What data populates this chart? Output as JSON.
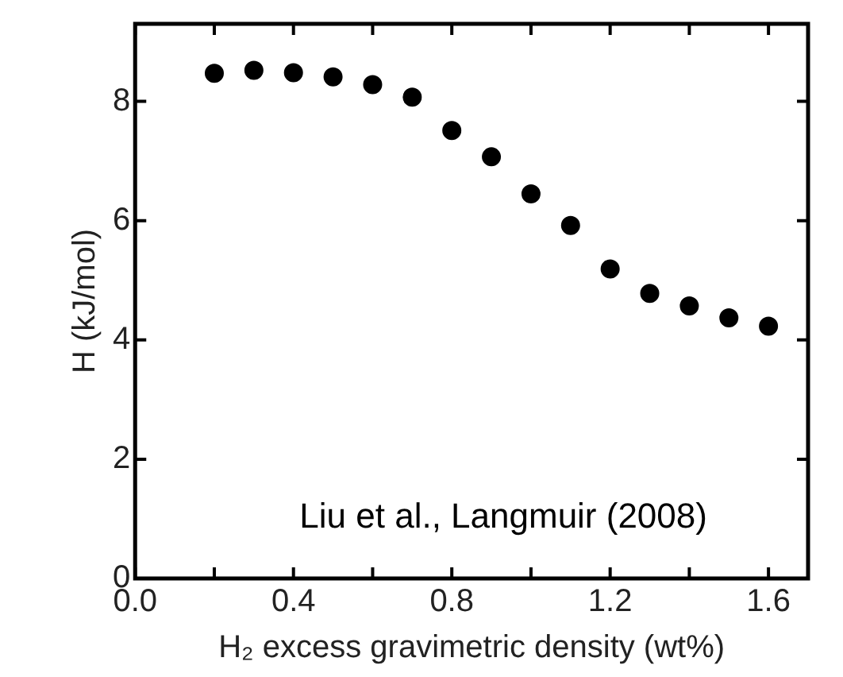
{
  "chart_data": {
    "type": "scatter",
    "xlabel": "H₂ excess gravimetric density (wt%)",
    "ylabel": "H (kJ/mol)",
    "annotations": [
      "Liu et al., Langmuir (2008)"
    ],
    "x": [
      0.2,
      0.3,
      0.4,
      0.5,
      0.6,
      0.7,
      0.8,
      0.9,
      1.0,
      1.1,
      1.2,
      1.3,
      1.4,
      1.5,
      1.6
    ],
    "series": [
      {
        "color": "#000000",
        "values": [
          8.47,
          8.52,
          8.48,
          8.41,
          8.28,
          8.07,
          7.51,
          7.07,
          6.45,
          5.92,
          5.19,
          4.78,
          4.57,
          4.37,
          4.23
        ]
      }
    ],
    "xlim": [
      0,
      1.7
    ],
    "ylim": [
      0,
      9.3
    ],
    "xticks": [
      {
        "value": 0,
        "label": "0.0"
      },
      {
        "value": 0.2,
        "label": null
      },
      0.4,
      {
        "value": 0.6,
        "label": null
      },
      0.8,
      {
        "value": 1.0,
        "label": null
      },
      1.2,
      {
        "value": 1.4,
        "label": null
      },
      1.6
    ],
    "yticks": [
      0,
      2,
      4,
      6,
      8
    ],
    "marker": "circle",
    "grid": false,
    "legend": false
  }
}
